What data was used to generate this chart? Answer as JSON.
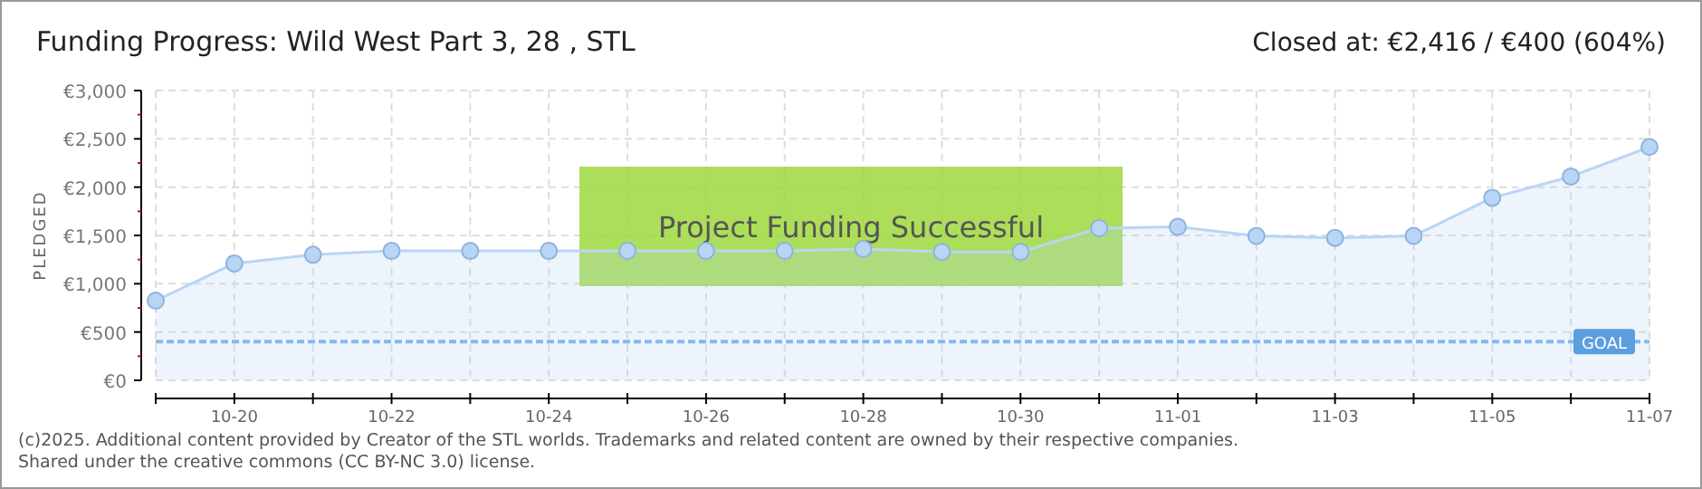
{
  "chart_data": {
    "type": "area",
    "title": "Funding Progress: Wild West Part 3, 28  , STL",
    "subtitle": "Closed at:  €2,416 /  €400 (604%)",
    "ylabel": "PLEDGED",
    "categories": [
      null,
      "10-20",
      null,
      "10-22",
      null,
      "10-24",
      null,
      "10-26",
      null,
      "10-28",
      null,
      "10-30",
      null,
      "11-01",
      null,
      "11-03",
      null,
      "11-05",
      null,
      "11-07"
    ],
    "series": [
      {
        "color": "#b9d5f5",
        "values": [
          825,
          1210,
          1300,
          1340,
          1340,
          1340,
          1340,
          1340,
          1340,
          1360,
          1330,
          1330,
          1575,
          1590,
          1495,
          1475,
          1495,
          1890,
          2110,
          2416
        ]
      }
    ],
    "ylim": [
      0,
      3000
    ],
    "yticks": [
      {
        "value": 0,
        "label": "€0"
      },
      {
        "value": 250,
        "label": null
      },
      {
        "value": 500,
        "label": "€500"
      },
      {
        "value": 750,
        "label": null
      },
      {
        "value": 1000,
        "label": "€1,000"
      },
      {
        "value": 1250,
        "label": null
      },
      {
        "value": 1500,
        "label": "€1,500"
      },
      {
        "value": 1750,
        "label": null
      },
      {
        "value": 2000,
        "label": "€2,000"
      },
      {
        "value": 2250,
        "label": null
      },
      {
        "value": 2500,
        "label": "€2,500"
      },
      {
        "value": 2750,
        "label": null
      },
      {
        "value": 3000,
        "label": "€3,000"
      }
    ],
    "grid": true,
    "marker": "circle",
    "ref_lines": [
      {
        "axis": "y",
        "value": 400,
        "label": "GOAL",
        "color": "#5b9ee0",
        "line_style": "dashed"
      }
    ],
    "annotations": [
      "Project Funding Successful",
      "(c)2025. Additional content provided by Creator of the STL worlds. Trademarks and related content are owned by their respective companies.",
      "Shared under the creative commons (CC BY-NC 3.0) license."
    ]
  }
}
